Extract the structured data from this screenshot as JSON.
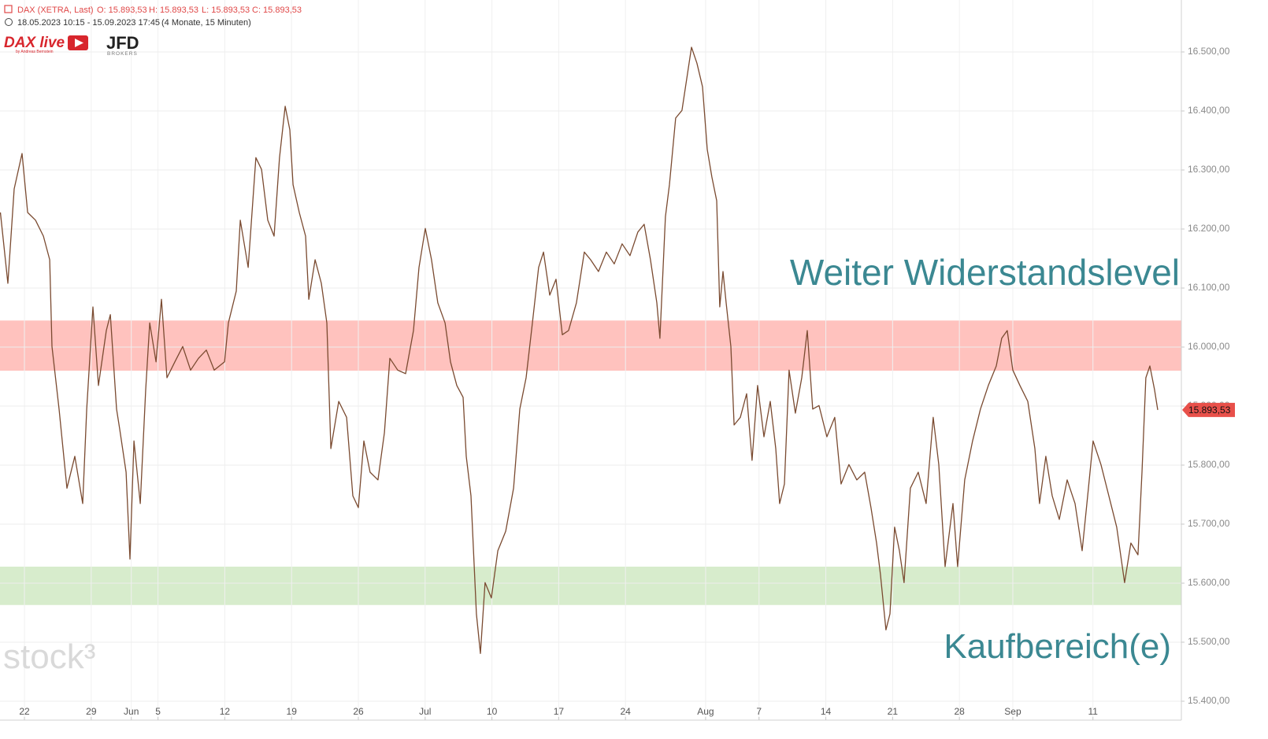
{
  "header": {
    "instrument": "DAX (XETRA, Last)",
    "ohlc": [
      "O: 15.893,53",
      "H: 15.893,53",
      "L: 15.893,53",
      "C: 15.893,53"
    ],
    "range": "18.05.2023 10:15 - 15.09.2023 17:45",
    "period": "(4 Monate, 15 Minuten)",
    "logo_main": "DAX live",
    "logo_byline": "by Andreas Bernstein",
    "broker": "JFD",
    "broker_sub": "BROKERS",
    "watermark": "stock³"
  },
  "chart_data": {
    "type": "line",
    "xlim": [
      -1.83,
      86.62
    ],
    "ylim": [
      15368,
      16588
    ],
    "xticks": [
      {
        "value": 0,
        "label": "22"
      },
      {
        "value": 5,
        "label": "29"
      },
      {
        "value": 8,
        "label": "Jun"
      },
      {
        "value": 10,
        "label": "5"
      },
      {
        "value": 15,
        "label": "12"
      },
      {
        "value": 20,
        "label": "19"
      },
      {
        "value": 25,
        "label": "26"
      },
      {
        "value": 30,
        "label": "Jul"
      },
      {
        "value": 35,
        "label": "10"
      },
      {
        "value": 40,
        "label": "17"
      },
      {
        "value": 45,
        "label": "24"
      },
      {
        "value": 51,
        "label": "Aug"
      },
      {
        "value": 55,
        "label": "7"
      },
      {
        "value": 60,
        "label": "14"
      },
      {
        "value": 65,
        "label": "21"
      },
      {
        "value": 70,
        "label": "28"
      },
      {
        "value": 74,
        "label": "Sep"
      },
      {
        "value": 80,
        "label": "11"
      }
    ],
    "yticks": [
      {
        "value": 15400,
        "label": "15.400,00"
      },
      {
        "value": 15500,
        "label": "15.500,00"
      },
      {
        "value": 15600,
        "label": "15.600,00"
      },
      {
        "value": 15700,
        "label": "15.700,00"
      },
      {
        "value": 15800,
        "label": "15.800,00"
      },
      {
        "value": 15900,
        "label": "15.900,00"
      },
      {
        "value": 16000,
        "label": "16.000,00"
      },
      {
        "value": 16100,
        "label": "16.100,00"
      },
      {
        "value": 16200,
        "label": "16.200,00"
      },
      {
        "value": 16300,
        "label": "16.300,00"
      },
      {
        "value": 16400,
        "label": "16.400,00"
      },
      {
        "value": 16500,
        "label": "16.500,00"
      }
    ],
    "grid": true,
    "zones": [
      {
        "label": "Weiter Widerstandslevel",
        "from": 15960,
        "to": 16045,
        "color": "rgba(255,120,110,0.45)",
        "text_color": "#3b8892"
      },
      {
        "label": "Kaufbereich(e)",
        "from": 15563,
        "to": 15628,
        "color": "rgba(140,200,110,0.35)",
        "text_color": "#3b8892"
      }
    ],
    "last_price": {
      "value": 15893.53,
      "label": "15.893,53"
    },
    "x": [
      -1.8,
      -1.24,
      -0.77,
      -0.18,
      0.24,
      0.83,
      1.42,
      1.89,
      2.06,
      2.59,
      3.18,
      3.77,
      4.36,
      4.66,
      5.13,
      5.54,
      6.13,
      6.43,
      6.9,
      7.13,
      7.61,
      7.9,
      8.2,
      8.67,
      9.08,
      9.38,
      9.85,
      10.26,
      10.67,
      11.26,
      11.85,
      12.44,
      13.03,
      13.62,
      14.21,
      14.98,
      15.27,
      15.86,
      16.16,
      16.75,
      17.33,
      17.75,
      18.22,
      18.69,
      19.1,
      19.52,
      19.87,
      20.11,
      20.58,
      21.05,
      21.29,
      21.76,
      22.23,
      22.64,
      22.94,
      23.53,
      24.12,
      24.59,
      25,
      25.41,
      25.88,
      26.47,
      26.95,
      27.36,
      27.95,
      28.54,
      29.13,
      29.54,
      30.01,
      30.48,
      30.95,
      31.49,
      31.9,
      32.37,
      32.84,
      33.08,
      33.43,
      33.84,
      34.14,
      34.49,
      34.96,
      35.44,
      36.03,
      36.62,
      37.09,
      37.56,
      38.03,
      38.5,
      38.86,
      39.33,
      39.8,
      40.27,
      40.74,
      41.33,
      41.92,
      42.39,
      42.98,
      43.57,
      44.16,
      44.75,
      45.34,
      45.93,
      46.4,
      46.87,
      47.35,
      47.58,
      47.99,
      48.29,
      48.76,
      49.23,
      49.59,
      49.94,
      50.35,
      50.77,
      51.12,
      51.47,
      51.83,
      52.06,
      52.3,
      52.54,
      52.89,
      53.13,
      53.6,
      54.07,
      54.48,
      54.89,
      55.37,
      55.84,
      56.25,
      56.54,
      56.9,
      57.25,
      57.72,
      58.2,
      58.61,
      59.02,
      59.49,
      60.08,
      60.67,
      61.14,
      61.73,
      62.32,
      62.91,
      63.38,
      63.8,
      64.09,
      64.5,
      64.8,
      65.15,
      65.51,
      65.86,
      66.33,
      66.92,
      67.51,
      68.04,
      68.46,
      68.93,
      69.52,
      69.87,
      70.4,
      70.99,
      71.58,
      72.17,
      72.76,
      73.17,
      73.58,
      74,
      74.53,
      75.12,
      75.65,
      76,
      76.47,
      76.95,
      77.48,
      78.07,
      78.66,
      79.19,
      79.66,
      80.01,
      80.6,
      81.19,
      81.78,
      82.37,
      82.84,
      83.37,
      83.67,
      83.96,
      84.26,
      84.61,
      84.85
    ],
    "series": [
      {
        "name": "DAX",
        "color": "#7a4a30",
        "values": [
          16228,
          16108,
          16268,
          16328,
          16228,
          16215,
          16188,
          16148,
          16001,
          15895,
          15761,
          15815,
          15735,
          15895,
          16068,
          15935,
          16028,
          16055,
          15895,
          15861,
          15788,
          15641,
          15841,
          15735,
          15928,
          16041,
          15975,
          16081,
          15948,
          15975,
          16001,
          15961,
          15981,
          15995,
          15961,
          15975,
          16041,
          16095,
          16215,
          16135,
          16321,
          16301,
          16215,
          16188,
          16321,
          16408,
          16368,
          16275,
          16228,
          16188,
          16081,
          16148,
          16108,
          16041,
          15828,
          15908,
          15881,
          15748,
          15728,
          15841,
          15788,
          15775,
          15855,
          15981,
          15961,
          15955,
          16028,
          16135,
          16201,
          16148,
          16075,
          16041,
          15975,
          15935,
          15915,
          15815,
          15748,
          15548,
          15481,
          15601,
          15575,
          15655,
          15688,
          15761,
          15895,
          15948,
          16041,
          16135,
          16161,
          16088,
          16115,
          16021,
          16028,
          16075,
          16161,
          16148,
          16128,
          16161,
          16141,
          16175,
          16155,
          16195,
          16208,
          16148,
          16075,
          16015,
          16221,
          16275,
          16388,
          16401,
          16455,
          16508,
          16481,
          16441,
          16335,
          16288,
          16248,
          16068,
          16128,
          16075,
          16001,
          15868,
          15881,
          15921,
          15808,
          15935,
          15848,
          15908,
          15828,
          15735,
          15768,
          15961,
          15888,
          15948,
          16028,
          15895,
          15901,
          15848,
          15881,
          15768,
          15801,
          15775,
          15788,
          15728,
          15668,
          15615,
          15521,
          15548,
          15695,
          15655,
          15601,
          15761,
          15788,
          15735,
          15881,
          15801,
          15628,
          15735,
          15628,
          15775,
          15841,
          15895,
          15935,
          15968,
          16015,
          16028,
          15961,
          15935,
          15908,
          15828,
          15735,
          15815,
          15748,
          15708,
          15775,
          15735,
          15655,
          15761,
          15841,
          15801,
          15748,
          15695,
          15601,
          15668,
          15648,
          15788,
          15948,
          15968,
          15928,
          15893.53
        ]
      }
    ]
  }
}
